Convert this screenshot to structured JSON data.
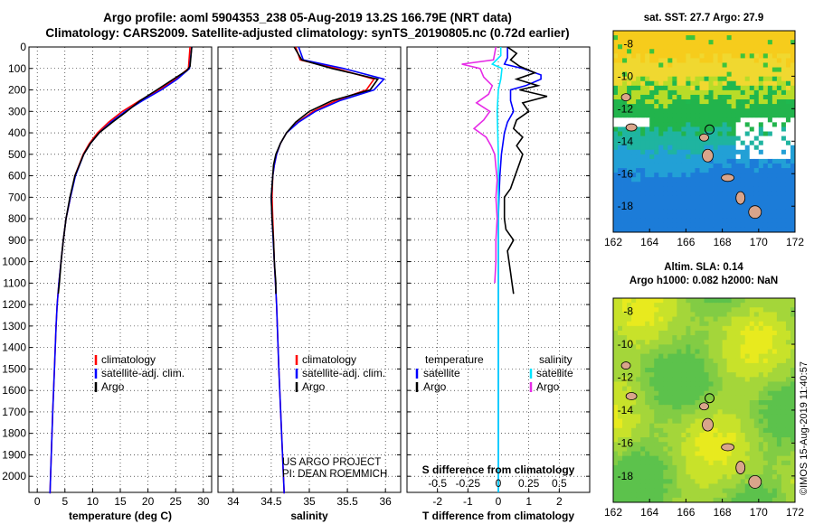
{
  "titles": {
    "line1": "Argo profile: aoml 5904353_238 05-Aug-2019 13.2S 166.79E (NRT data)",
    "line2": "Climatology: CARS2009. Satellite-adjusted climatology: synTS_20190805.nc (0.72d earlier)"
  },
  "colors": {
    "climatology": "#ff0000",
    "satellite": "#0000ff",
    "argo": "#000000",
    "s_sat": "#00e5ff",
    "s_argo": "#e62be6"
  },
  "chart_data": [
    {
      "type": "line",
      "name": "temperature",
      "title": "",
      "xlabel": "temperature (deg C)",
      "ylabel": "",
      "xlim": [
        -1.5,
        31.5
      ],
      "ylim": [
        2075,
        0
      ],
      "xticks": [
        0,
        5,
        10,
        15,
        20,
        25,
        30
      ],
      "xtick_labels": [
        "0",
        "5",
        "10",
        "15",
        "20",
        "25",
        "30"
      ],
      "yticks": [
        0,
        100,
        200,
        300,
        400,
        500,
        600,
        700,
        800,
        900,
        1000,
        1100,
        1200,
        1300,
        1400,
        1500,
        1600,
        1700,
        1800,
        1900,
        2000
      ],
      "ytick_labels": [
        "0",
        "100",
        "200",
        "300",
        "400",
        "500",
        "600",
        "700",
        "800",
        "900",
        "1000",
        "1100",
        "1200",
        "1300",
        "1400",
        "1500",
        "1600",
        "1700",
        "1800",
        "1900",
        "2000"
      ],
      "legend": [
        "climatology",
        "satellite-adj. clim.",
        "Argo"
      ],
      "series": [
        {
          "name": "climatology",
          "color": "#ff0000",
          "depth": [
            0,
            100,
            150,
            200,
            250,
            300,
            350,
            400,
            450,
            500,
            600,
            700,
            800,
            900,
            1000,
            1100,
            1200,
            1300,
            1500,
            1700,
            2000,
            2080
          ],
          "values": [
            27.6,
            27.3,
            25.0,
            22.0,
            18.5,
            15.4,
            12.9,
            10.9,
            9.4,
            8.3,
            6.8,
            6.0,
            5.2,
            4.7,
            4.3,
            3.9,
            3.6,
            3.4,
            3.1,
            2.8,
            2.4,
            2.3
          ]
        },
        {
          "name": "satellite-adj. clim.",
          "color": "#0000ff",
          "depth": [
            0,
            100,
            150,
            200,
            250,
            300,
            350,
            400,
            450,
            500,
            600,
            700,
            800,
            900,
            1000,
            1100,
            1200,
            1300,
            1500,
            1700,
            2000,
            2080
          ],
          "values": [
            27.9,
            27.5,
            25.3,
            22.4,
            19.0,
            15.9,
            13.3,
            11.2,
            9.6,
            8.4,
            6.9,
            6.0,
            5.2,
            4.7,
            4.3,
            3.9,
            3.6,
            3.4,
            3.1,
            2.8,
            2.4,
            2.3
          ]
        },
        {
          "name": "Argo",
          "color": "#000000",
          "depth": [
            0,
            90,
            110,
            150,
            200,
            250,
            300,
            350,
            400,
            450,
            500,
            600,
            700,
            800,
            900,
            1000,
            1100,
            1150
          ],
          "values": [
            27.9,
            27.6,
            27.0,
            24.6,
            21.6,
            18.6,
            16.2,
            13.6,
            11.2,
            9.6,
            8.4,
            6.8,
            5.9,
            5.2,
            4.7,
            4.3,
            4.0,
            3.8
          ]
        }
      ]
    },
    {
      "type": "line",
      "name": "salinity",
      "title": "",
      "xlabel": "salinity",
      "ylabel": "",
      "xlim": [
        33.8,
        36.2
      ],
      "ylim": [
        2075,
        0
      ],
      "xticks": [
        34,
        34.5,
        35,
        35.5,
        36
      ],
      "xtick_labels": [
        "34",
        "34.5",
        "35",
        "35.5",
        "36"
      ],
      "legend": [
        "climatology",
        "satellite-adj. clim.",
        "Argo"
      ],
      "annotations": [
        "US ARGO PROJECT",
        "PI: DEAN ROEMMICH"
      ],
      "series": [
        {
          "name": "climatology",
          "color": "#ff0000",
          "depth": [
            0,
            60,
            100,
            150,
            200,
            250,
            300,
            350,
            400,
            450,
            500,
            550,
            600,
            700,
            800,
            1000,
            1200,
            1500,
            2000,
            2080
          ],
          "values": [
            34.82,
            34.88,
            35.35,
            35.85,
            35.75,
            35.35,
            35.05,
            34.85,
            34.7,
            34.62,
            34.57,
            34.54,
            34.52,
            34.51,
            34.52,
            34.54,
            34.57,
            34.6,
            34.66,
            34.67
          ]
        },
        {
          "name": "satellite-adj. clim.",
          "color": "#0000ff",
          "depth": [
            0,
            60,
            100,
            150,
            200,
            250,
            300,
            350,
            400,
            450,
            500,
            550,
            600,
            700,
            800,
            1000,
            1200,
            1500,
            2000,
            2080
          ],
          "values": [
            34.86,
            34.92,
            35.45,
            35.98,
            35.85,
            35.4,
            35.08,
            34.86,
            34.7,
            34.62,
            34.57,
            34.54,
            34.52,
            34.5,
            34.51,
            34.54,
            34.57,
            34.6,
            34.66,
            34.67
          ]
        },
        {
          "name": "Argo",
          "color": "#000000",
          "depth": [
            0,
            60,
            100,
            150,
            200,
            250,
            300,
            350,
            400,
            450,
            500,
            550,
            600,
            700,
            800,
            900,
            1000,
            1100,
            1150
          ],
          "values": [
            34.8,
            34.9,
            35.3,
            35.9,
            35.8,
            35.3,
            35.0,
            34.82,
            34.7,
            34.62,
            34.56,
            34.53,
            34.52,
            34.5,
            34.51,
            34.53,
            34.54,
            34.56,
            34.56
          ]
        }
      ]
    },
    {
      "type": "line",
      "name": "difference from climatology",
      "title": "",
      "xlabel": "T difference from climatology",
      "xlabel_top": "S difference from climatology",
      "xlim": [
        -3,
        3
      ],
      "ylim": [
        2075,
        0
      ],
      "xticks": [
        -2,
        -1,
        0,
        1,
        2
      ],
      "xtick_labels": [
        "-2",
        "-1",
        "0",
        "1",
        "2"
      ],
      "sticks": [
        -0.5,
        -0.25,
        0,
        0.25,
        0.5
      ],
      "stick_labels": [
        "-0.5",
        "-0.25",
        "0",
        "0.25",
        "0.5"
      ],
      "legend_left_heading": "temperature",
      "legend_right_heading": "salinity",
      "legend_left": [
        "satellite",
        "Argo"
      ],
      "legend_right": [
        "satellite",
        "Argo"
      ],
      "series": [
        {
          "name": "T satellite",
          "color": "#0000ff",
          "depth": [
            0,
            50,
            80,
            100,
            130,
            150,
            180,
            200,
            250,
            300,
            350,
            400,
            500,
            600,
            700,
            800,
            2075
          ],
          "values": [
            0.3,
            0.3,
            0.2,
            0.8,
            1.4,
            1.4,
            0.9,
            0.4,
            0.4,
            0.5,
            0.3,
            0.2,
            0.1,
            0.05,
            0.02,
            0.0,
            0.0
          ]
        },
        {
          "name": "T Argo",
          "color": "#000000",
          "depth": [
            0,
            30,
            60,
            90,
            120,
            150,
            180,
            200,
            230,
            260,
            300,
            340,
            380,
            420,
            460,
            500,
            540,
            580,
            620,
            660,
            700,
            800,
            850,
            900,
            950,
            1000,
            1050,
            1100,
            1150
          ],
          "values": [
            0.3,
            0.6,
            0.4,
            0.7,
            1.2,
            0.6,
            1.3,
            0.7,
            1.6,
            0.8,
            1.0,
            0.6,
            0.5,
            0.8,
            0.6,
            0.8,
            0.7,
            0.6,
            0.5,
            0.4,
            0.2,
            0.2,
            0.25,
            0.5,
            0.3,
            0.35,
            0.4,
            0.45,
            0.5
          ]
        },
        {
          "name": "S satellite",
          "color": "#00e5ff",
          "depth": [
            0,
            40,
            80,
            100,
            150,
            200,
            300,
            500,
            700,
            900,
            1100,
            1500,
            2075
          ],
          "values": [
            0.02,
            0.02,
            -0.05,
            0.03,
            0.02,
            0.0,
            -0.01,
            0.0,
            0.0,
            0.0,
            0.0,
            0.0,
            0.0
          ]
        },
        {
          "name": "S Argo",
          "color": "#e62be6",
          "depth": [
            0,
            60,
            80,
            100,
            140,
            180,
            220,
            260,
            300,
            340,
            380,
            420,
            460,
            500,
            560,
            620,
            700,
            800,
            900,
            1000,
            1100
          ],
          "values": [
            -0.02,
            -0.04,
            -0.3,
            -0.15,
            -0.12,
            -0.05,
            -0.08,
            -0.18,
            -0.07,
            -0.12,
            -0.2,
            -0.1,
            -0.06,
            -0.03,
            -0.02,
            -0.01,
            -0.02,
            -0.01,
            -0.02,
            -0.02,
            -0.03
          ]
        }
      ]
    }
  ],
  "maps": {
    "sst": {
      "title": "sat. SST: 27.7 Argo: 27.9",
      "xticks": [
        "162",
        "164",
        "166",
        "168",
        "170",
        "172"
      ],
      "yticks": [
        "-8",
        "-10",
        "-12",
        "-14",
        "-16",
        "-18"
      ]
    },
    "sla": {
      "title1": "Altim. SLA: 0.14",
      "title2": "Argo h1000: 0.082 h2000: NaN",
      "xticks": [
        "162",
        "164",
        "166",
        "168",
        "170",
        "172"
      ],
      "yticks": [
        "-8",
        "-10",
        "-12",
        "-14",
        "-16",
        "-18"
      ]
    }
  },
  "credit": "©IMOS 15-Aug-2019 11:40:57"
}
